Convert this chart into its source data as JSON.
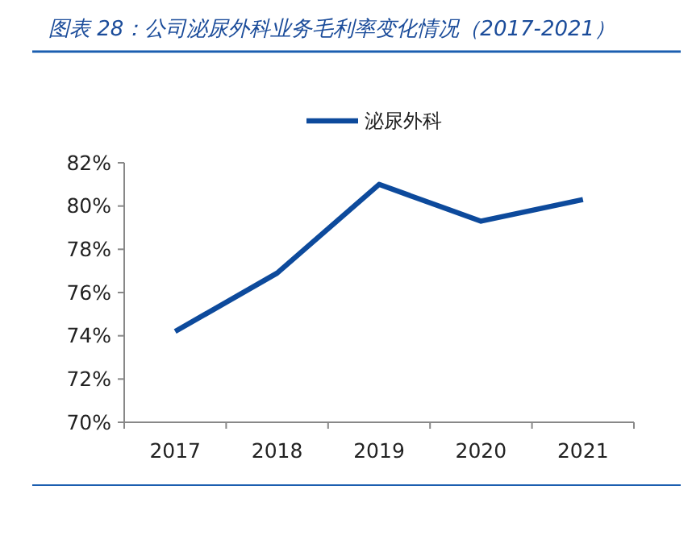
{
  "chart_data": {
    "type": "line",
    "title": "图表 28：公司泌尿外科业务毛利率变化情况（2017-2021）",
    "categories": [
      "2017",
      "2018",
      "2019",
      "2020",
      "2021"
    ],
    "series": [
      {
        "name": "泌尿外科",
        "color": "#0d4a9c",
        "values": [
          74.2,
          76.9,
          81.0,
          79.3,
          80.3
        ]
      }
    ],
    "ylim": [
      70,
      82
    ],
    "yticks": [
      {
        "value": 70,
        "label": "70%"
      },
      {
        "value": 72,
        "label": "72%"
      },
      {
        "value": 74,
        "label": "74%"
      },
      {
        "value": 76,
        "label": "76%"
      },
      {
        "value": 78,
        "label": "78%"
      },
      {
        "value": 80,
        "label": "80%"
      },
      {
        "value": 82,
        "label": "82%"
      }
    ],
    "grid": false,
    "legend": "top",
    "marker": "none",
    "line_style": "solid"
  }
}
